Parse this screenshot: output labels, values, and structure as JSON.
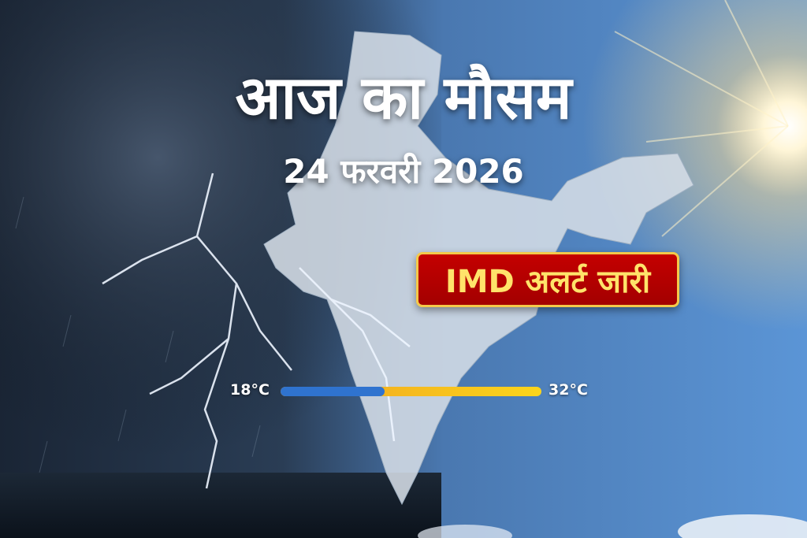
{
  "header": {
    "title": "आज का मौसम",
    "date": "24 फरवरी 2026"
  },
  "badge": {
    "label": "IMD अलर्ट जारी",
    "background": "#b50000",
    "border": "#f3c94a",
    "text_color": "#ffe36a"
  },
  "temperature": {
    "min_label": "18°C",
    "max_label": "32°C",
    "cool_fraction": 0.4,
    "cool_color": "#2f73cf",
    "warm_color": "#fbd51c"
  },
  "scene": {
    "left": "storm-with-lightning",
    "right": "sunny-sky",
    "center": "india-map"
  }
}
